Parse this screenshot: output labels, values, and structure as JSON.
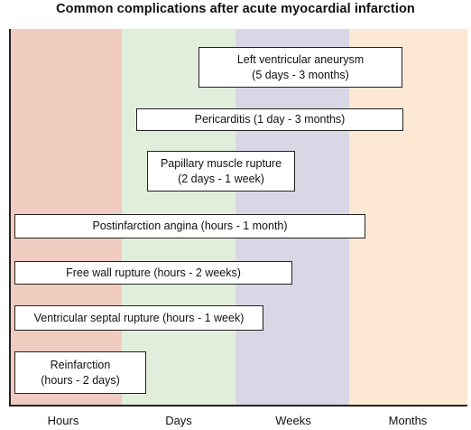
{
  "title": "Common complications after acute myocardial infarction",
  "periods": [
    {
      "label": "Hours",
      "color": "#f0cbbf"
    },
    {
      "label": "Days",
      "color": "#e2eedc"
    },
    {
      "label": "Weeks",
      "color": "#d9d7e6"
    },
    {
      "label": "Months",
      "color": "#fde8d3"
    }
  ],
  "complications": [
    {
      "label": "Left ventricular aneurysm\n(5 days - 3 months)"
    },
    {
      "label": "Pericarditis (1 day - 3 months)"
    },
    {
      "label": "Papillary muscle rupture\n(2 days - 1 week)"
    },
    {
      "label": "Postinfarction angina (hours - 1 month)"
    },
    {
      "label": "Free wall rupture (hours - 2 weeks)"
    },
    {
      "label": "Ventricular septal rupture (hours - 1 week)"
    },
    {
      "label": "Reinfarction\n(hours - 2 days)"
    }
  ]
}
